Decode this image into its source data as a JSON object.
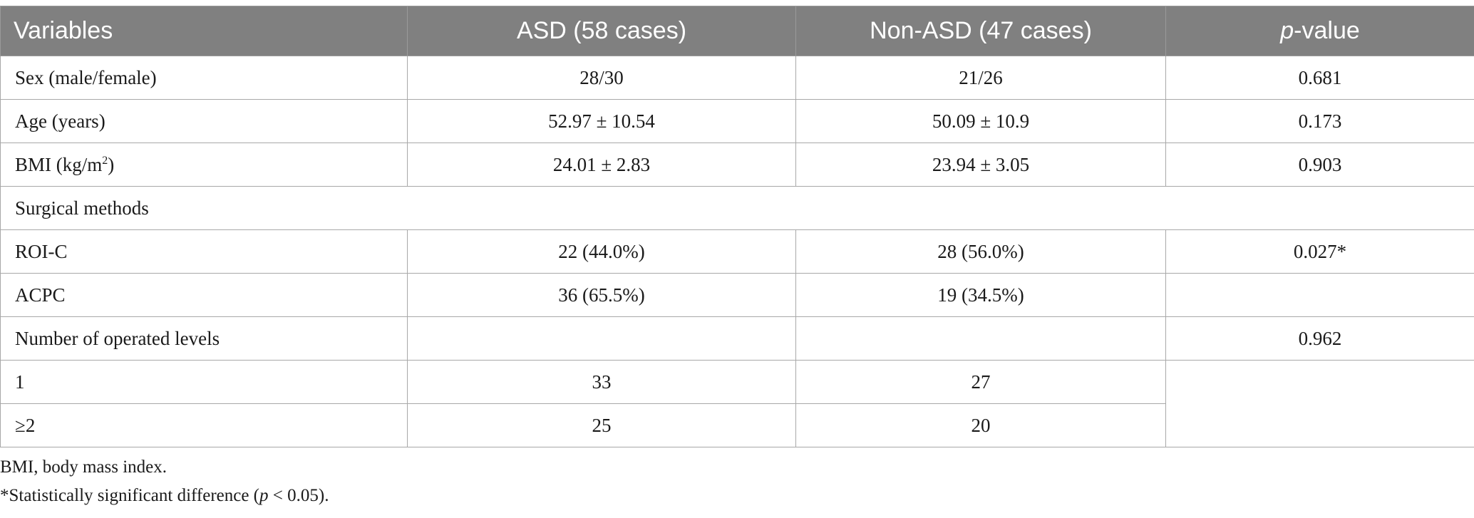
{
  "table": {
    "headers": {
      "variables": "Variables",
      "asd": "ASD (58 cases)",
      "non_asd": "Non-ASD (47 cases)",
      "p_italic": "p",
      "p_rest": "-value"
    },
    "rows": [
      {
        "variable": "Sex (male/female)",
        "asd": "28/30",
        "non_asd": "21/26",
        "p": "0.681"
      },
      {
        "variable": "Age (years)",
        "asd": "52.97 ± 10.54",
        "non_asd": "50.09 ± 10.9",
        "p": "0.173"
      },
      {
        "variable_pre": "BMI (kg/m",
        "variable_sup": "2",
        "variable_post": ")",
        "asd": "24.01 ± 2.83",
        "non_asd": "23.94 ± 3.05",
        "p": "0.903"
      },
      {
        "variable": "Surgical methods"
      },
      {
        "variable": "ROI-C",
        "asd": "22 (44.0%)",
        "non_asd": "28 (56.0%)",
        "p": "0.027*"
      },
      {
        "variable": "ACPC",
        "asd": "36 (65.5%)",
        "non_asd": "19 (34.5%)",
        "p": ""
      },
      {
        "variable": "Number of operated levels",
        "asd": "",
        "non_asd": "",
        "p": "0.962"
      },
      {
        "variable": "1",
        "asd": "33",
        "non_asd": "27"
      },
      {
        "variable": "≥2",
        "asd": "25",
        "non_asd": "20"
      }
    ]
  },
  "notes": {
    "abbrev": "BMI, body mass index.",
    "sig_pre": "*Statistically significant difference (",
    "sig_p": "p",
    "sig_post": " < 0.05)."
  }
}
